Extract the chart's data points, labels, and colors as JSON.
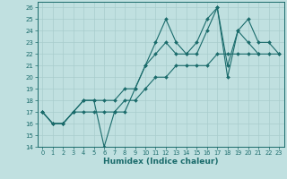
{
  "xlabel": "Humidex (Indice chaleur)",
  "xlim": [
    -0.5,
    23.5
  ],
  "ylim": [
    14,
    26.5
  ],
  "yticks": [
    14,
    15,
    16,
    17,
    18,
    19,
    20,
    21,
    22,
    23,
    24,
    25,
    26
  ],
  "xticks": [
    0,
    1,
    2,
    3,
    4,
    5,
    6,
    7,
    8,
    9,
    10,
    11,
    12,
    13,
    14,
    15,
    16,
    17,
    18,
    19,
    20,
    21,
    22,
    23
  ],
  "bg_color": "#c0e0e0",
  "line_color": "#1a6b6b",
  "grid_color": "#a8cccc",
  "lines": [
    [
      17,
      16,
      16,
      17,
      18,
      18,
      14,
      17,
      17,
      19,
      21,
      23,
      25,
      23,
      22,
      22,
      24,
      26,
      20,
      24,
      23,
      22,
      null,
      null
    ],
    [
      17,
      16,
      16,
      17,
      17,
      17,
      17,
      17,
      18,
      18,
      19,
      20,
      20,
      21,
      21,
      21,
      21,
      22,
      22,
      22,
      22,
      22,
      22,
      22
    ],
    [
      17,
      16,
      16,
      17,
      18,
      18,
      18,
      18,
      19,
      19,
      21,
      22,
      23,
      22,
      22,
      23,
      25,
      26,
      21,
      24,
      25,
      23,
      23,
      22
    ]
  ]
}
